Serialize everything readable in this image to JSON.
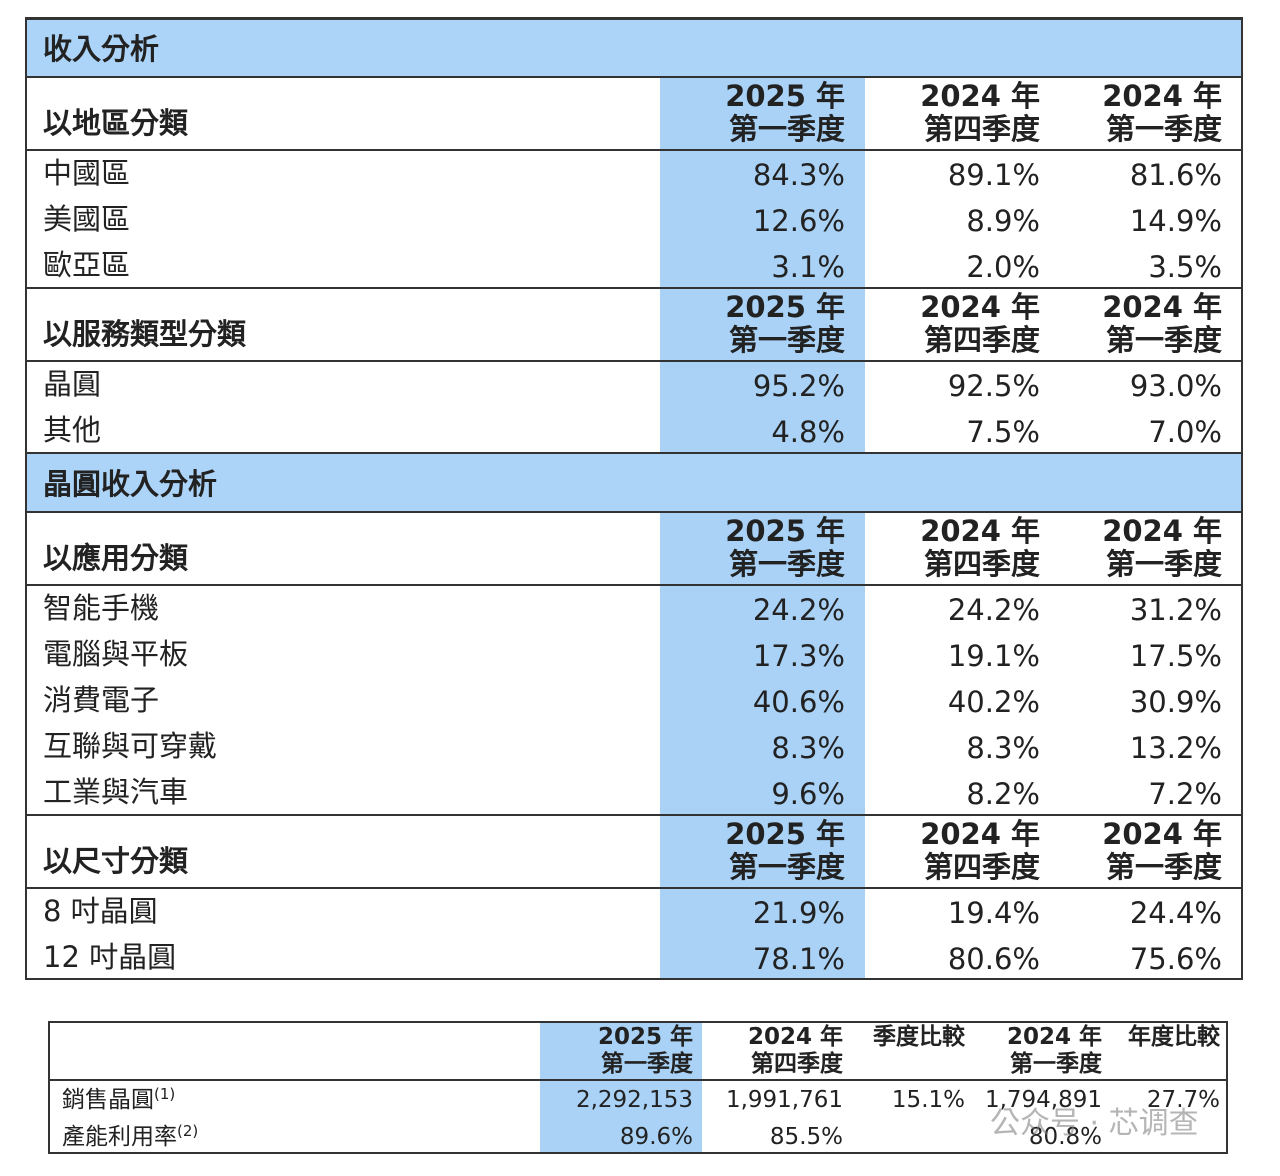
{
  "sections": [
    {
      "title": "收入分析",
      "groups": [
        {
          "label": "以地區分類",
          "columns": [
            {
              "year": "2025 年",
              "quarter": "第一季度"
            },
            {
              "year": "2024 年",
              "quarter": "第四季度"
            },
            {
              "year": "2024 年",
              "quarter": "第一季度"
            }
          ],
          "rows": [
            {
              "label": "中國區",
              "values": [
                "84.3%",
                "89.1%",
                "81.6%"
              ]
            },
            {
              "label": "美國區",
              "values": [
                "12.6%",
                "8.9%",
                "14.9%"
              ]
            },
            {
              "label": "歐亞區",
              "values": [
                "3.1%",
                "2.0%",
                "3.5%"
              ]
            }
          ]
        },
        {
          "label": "以服務類型分類",
          "columns": [
            {
              "year": "2025 年",
              "quarter": "第一季度"
            },
            {
              "year": "2024 年",
              "quarter": "第四季度"
            },
            {
              "year": "2024 年",
              "quarter": "第一季度"
            }
          ],
          "rows": [
            {
              "label": "晶圓",
              "values": [
                "95.2%",
                "92.5%",
                "93.0%"
              ]
            },
            {
              "label": "其他",
              "values": [
                "4.8%",
                "7.5%",
                "7.0%"
              ]
            }
          ]
        }
      ]
    },
    {
      "title": "晶圓收入分析",
      "groups": [
        {
          "label": "以應用分類",
          "columns": [
            {
              "year": "2025 年",
              "quarter": "第一季度"
            },
            {
              "year": "2024 年",
              "quarter": "第四季度"
            },
            {
              "year": "2024 年",
              "quarter": "第一季度"
            }
          ],
          "rows": [
            {
              "label": "智能手機",
              "values": [
                "24.2%",
                "24.2%",
                "31.2%"
              ]
            },
            {
              "label": "電腦與平板",
              "values": [
                "17.3%",
                "19.1%",
                "17.5%"
              ]
            },
            {
              "label": "消費電子",
              "values": [
                "40.6%",
                "40.2%",
                "30.9%"
              ]
            },
            {
              "label": "互聯與可穿戴",
              "values": [
                "8.3%",
                "8.3%",
                "13.2%"
              ]
            },
            {
              "label": "工業與汽車",
              "values": [
                "9.6%",
                "8.2%",
                "7.2%"
              ]
            }
          ]
        },
        {
          "label": "以尺寸分類",
          "columns": [
            {
              "year": "2025 年",
              "quarter": "第一季度"
            },
            {
              "year": "2024 年",
              "quarter": "第四季度"
            },
            {
              "year": "2024 年",
              "quarter": "第一季度"
            }
          ],
          "rows": [
            {
              "label": "8 吋晶圓",
              "values": [
                "21.9%",
                "19.4%",
                "24.4%"
              ]
            },
            {
              "label": "12 吋晶圓",
              "values": [
                "78.1%",
                "80.6%",
                "75.6%"
              ]
            }
          ]
        }
      ]
    }
  ],
  "summary_table": {
    "columns": [
      {
        "year": "2025 年",
        "quarter": "第一季度"
      },
      {
        "year": "2024 年",
        "quarter": "第四季度"
      },
      {
        "label": "季度比較"
      },
      {
        "year": "2024 年",
        "quarter": "第一季度"
      },
      {
        "label": "年度比較"
      }
    ],
    "rows": [
      {
        "label": "銷售晶圓",
        "note": "(1)",
        "values": [
          "2,292,153",
          "1,991,761",
          "15.1%",
          "1,794,891",
          "27.7%"
        ]
      },
      {
        "label": "產能利用率",
        "note": "(2)",
        "values": [
          "89.6%",
          "85.5%",
          null,
          "80.8%",
          null
        ]
      }
    ]
  },
  "watermark": "公众号 · 芯调查"
}
